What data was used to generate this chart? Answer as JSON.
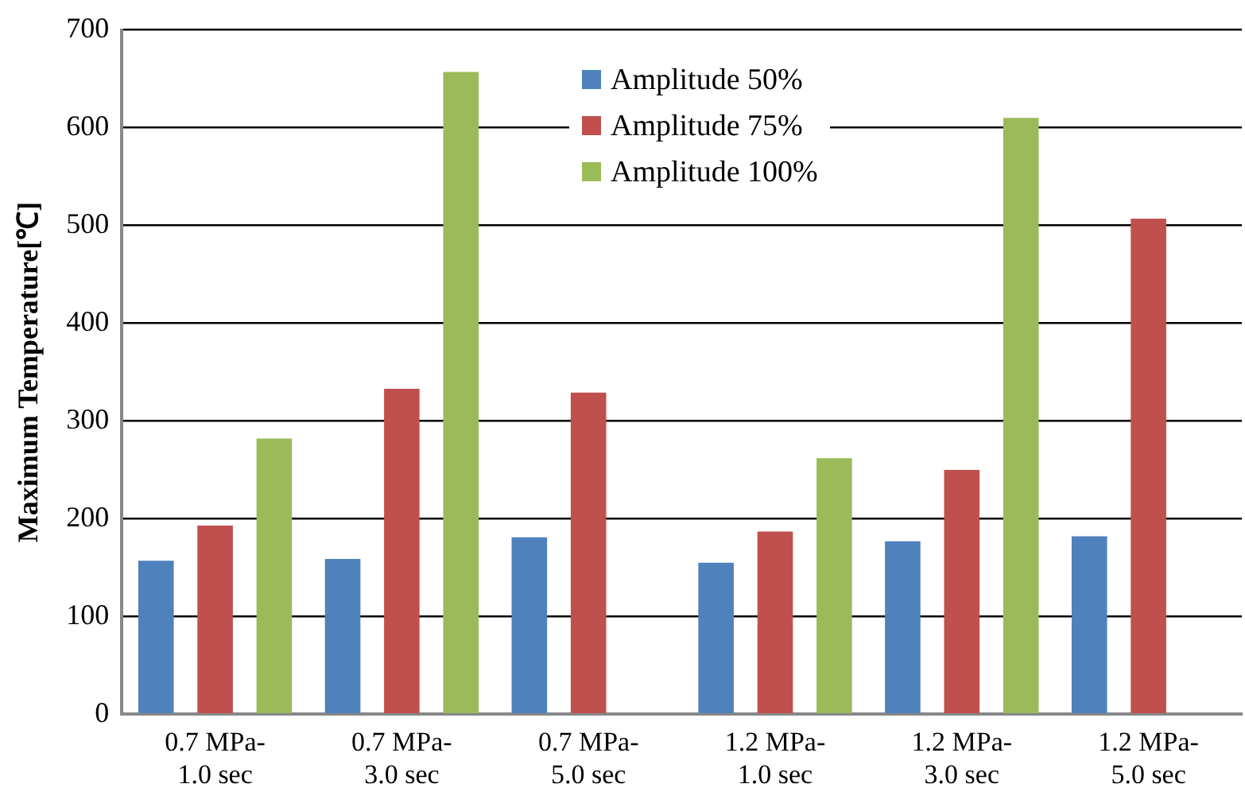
{
  "chart_data": {
    "type": "bar",
    "ylabel": "Maximum Temperature[℃]",
    "categories": [
      "0.7 MPa-1.0 sec",
      "0.7 MPa-3.0 sec",
      "0.7 MPa-5.0 sec",
      "1.2 MPa-1.0 sec",
      "1.2 MPa-3.0 sec",
      "1.2 MPa-5.0 sec"
    ],
    "series": [
      {
        "name": "Amplitude 50%",
        "color": "#4f81bd",
        "values": [
          157,
          159,
          181,
          155,
          177,
          182
        ]
      },
      {
        "name": "Amplitude 75%",
        "color": "#c0504d",
        "values": [
          193,
          333,
          329,
          187,
          250,
          507
        ]
      },
      {
        "name": "Amplitude 100%",
        "color": "#9bbb59",
        "values": [
          282,
          657,
          null,
          262,
          610,
          null
        ]
      }
    ],
    "ylim": [
      0,
      700
    ],
    "yticks": [
      0,
      100,
      200,
      300,
      400,
      500,
      600,
      700
    ],
    "grid": "y",
    "legend": "top"
  }
}
